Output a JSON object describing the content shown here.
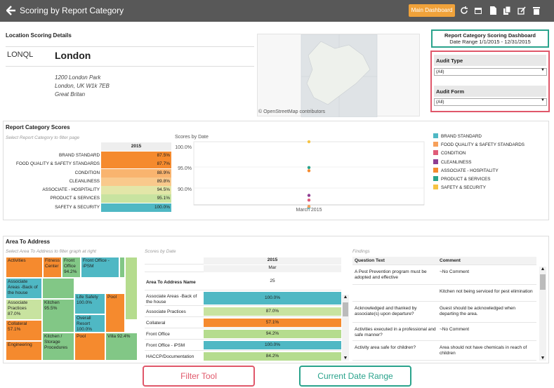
{
  "header": {
    "title": "Scoring by Report Category",
    "main_dashboard": "Main Dashboard",
    "icons": [
      "refresh-icon",
      "calendar-icon",
      "document-icon",
      "copy-icon",
      "edit-icon",
      "trash-icon"
    ]
  },
  "location": {
    "heading": "Location Scoring Details",
    "code": "LONQL",
    "name": "London",
    "address": [
      "1200 London Park",
      "London, UK   W1k 7EB",
      "Great Britan"
    ]
  },
  "map": {
    "credit": "© OpenStreetMap contributors"
  },
  "dashboard_box": {
    "title": "Report Category Scoring Dashboard",
    "date_range": "Date Range 1/1/2015 - 12/31/2015"
  },
  "filters": {
    "audit_type_label": "Audit Type",
    "audit_type_value": "(All)",
    "audit_form_label": "Audit Form",
    "audit_form_value": "(All)"
  },
  "report_category": {
    "title": "Report Category Scores",
    "subtitle": "Select Report Category to filter page",
    "year": "2015",
    "rows": [
      {
        "label": "BRAND STANDARD",
        "value": "87.5%",
        "color": "#f58a2e"
      },
      {
        "label": "FOOD QUALITY & SAFETY STANDARDS",
        "value": "87.7%",
        "color": "#f58a2e"
      },
      {
        "label": "CONDITION",
        "value": "88.9%",
        "color": "#f9b46f"
      },
      {
        "label": "CLEANLINESS",
        "value": "89.8%",
        "color": "#f9c98c"
      },
      {
        "label": "ASSOCIATE - HOSPITALITY",
        "value": "94.5%",
        "color": "#e3e6a8"
      },
      {
        "label": "PRODUCT & SERVICES",
        "value": "95.1%",
        "color": "#c8e3a0"
      },
      {
        "label": "SAFETY & SECURITY",
        "value": "100.0%",
        "color": "#4fb8c4"
      }
    ]
  },
  "scores_by_date": {
    "title": "Scores by Date",
    "y_ticks": [
      "100.0%",
      "95.0%",
      "90.0%"
    ],
    "x_label": "March 2015"
  },
  "chart_data": {
    "type": "scatter",
    "title": "Scores by Date",
    "x": [
      "March 2015"
    ],
    "ylim": [
      88,
      100
    ],
    "series": [
      {
        "name": "BRAND STANDARD",
        "values": [
          87.5
        ],
        "color": "#4fb8c4"
      },
      {
        "name": "FOOD QUALITY & SAFETY STANDARDS",
        "values": [
          87.7
        ],
        "color": "#f6a05a"
      },
      {
        "name": "CONDITION",
        "values": [
          88.9
        ],
        "color": "#e05c78"
      },
      {
        "name": "CLEANLINESS",
        "values": [
          89.8
        ],
        "color": "#8e3e93"
      },
      {
        "name": "ASSOCIATE - HOSPITALITY",
        "values": [
          94.5
        ],
        "color": "#f58a2e"
      },
      {
        "name": "PRODUCT & SERVICES",
        "values": [
          95.1
        ],
        "color": "#2aa38c"
      },
      {
        "name": "SAFETY & SECURITY",
        "values": [
          100.0
        ],
        "color": "#f6c343"
      }
    ]
  },
  "area_to_address": {
    "title": "Area To Address",
    "subtitle": "Select Area To Address to filter graph at right",
    "tree": [
      {
        "label": "Activities",
        "color": "#f58a2e"
      },
      {
        "label": "Fitness Center",
        "color": "#f58a2e"
      },
      {
        "label": "Front Office 94.2%",
        "color": "#82c786"
      },
      {
        "label": "Front Office - iPSM",
        "color": "#4fb8c4"
      },
      {
        "label": "",
        "color": "#82c786"
      },
      {
        "label": "",
        "color": "#b5dc8e"
      },
      {
        "label": "Associate Areas -Back of the house",
        "color": "#4fb8c4"
      },
      {
        "label": "Associate Practices 87.0%",
        "color": "#c8e3a0"
      },
      {
        "label": "Kitchen 95.5%",
        "color": "#82c786"
      },
      {
        "label": "Life Safety 100.0%",
        "color": "#4fb8c4"
      },
      {
        "label": "Pool",
        "color": "#f58a2e"
      },
      {
        "label": "Collateral 57.1%",
        "color": "#f58a2e"
      },
      {
        "label": "Overall Resort 100.0%",
        "color": "#4fb8c4"
      },
      {
        "label": "",
        "color": "#82c786"
      },
      {
        "label": "Engineering",
        "color": "#f58a2e"
      },
      {
        "label": "Kitchen / Storage Procedures",
        "color": "#82c786"
      },
      {
        "label": "Pool",
        "color": "#f58a2e"
      },
      {
        "label": "Villa 92.4%",
        "color": "#82c786"
      }
    ]
  },
  "scores_detail": {
    "title": "Scores by Date",
    "year": "2015",
    "month": "Mar",
    "col_name": "Area To Address Name",
    "count": "25",
    "rows": [
      {
        "name": "Associate Areas -Back of the house",
        "value": "100.0%",
        "color": "#4fb8c4"
      },
      {
        "name": "Associate Practices",
        "value": "87.0%",
        "color": "#c8e3a0"
      },
      {
        "name": "Collateral",
        "value": "57.1%",
        "color": "#f58a2e"
      },
      {
        "name": "Front Office",
        "value": "94.2%",
        "color": "#b5dc8e"
      },
      {
        "name": "Front Office - iPSM",
        "value": "100.0%",
        "color": "#4fb8c4"
      },
      {
        "name": "HACCP/Documentation",
        "value": "84.2%",
        "color": "#b5dc8e"
      }
    ]
  },
  "findings": {
    "title": "Findings",
    "col_q": "Question Text",
    "col_c": "Comment",
    "rows": [
      {
        "q": "A Pest Prevention program must be adopted and effective",
        "c": "~No Comment"
      },
      {
        "q": "",
        "c": "Kitchen not being serviced for pest elimination"
      },
      {
        "q": "Acknowledged and thanked by associate(s) upon departure?",
        "c": "Guest should be acknowledged when departing the area."
      },
      {
        "q": "Activities executed in a professional and safe manner?",
        "c": "~No Comment"
      },
      {
        "q": "Activity area safe for children?",
        "c": "Area should not have chemicals in reach of children"
      }
    ]
  },
  "callouts": {
    "filter_tool": "Filter Tool",
    "current_date_range": "Current Date Range"
  }
}
